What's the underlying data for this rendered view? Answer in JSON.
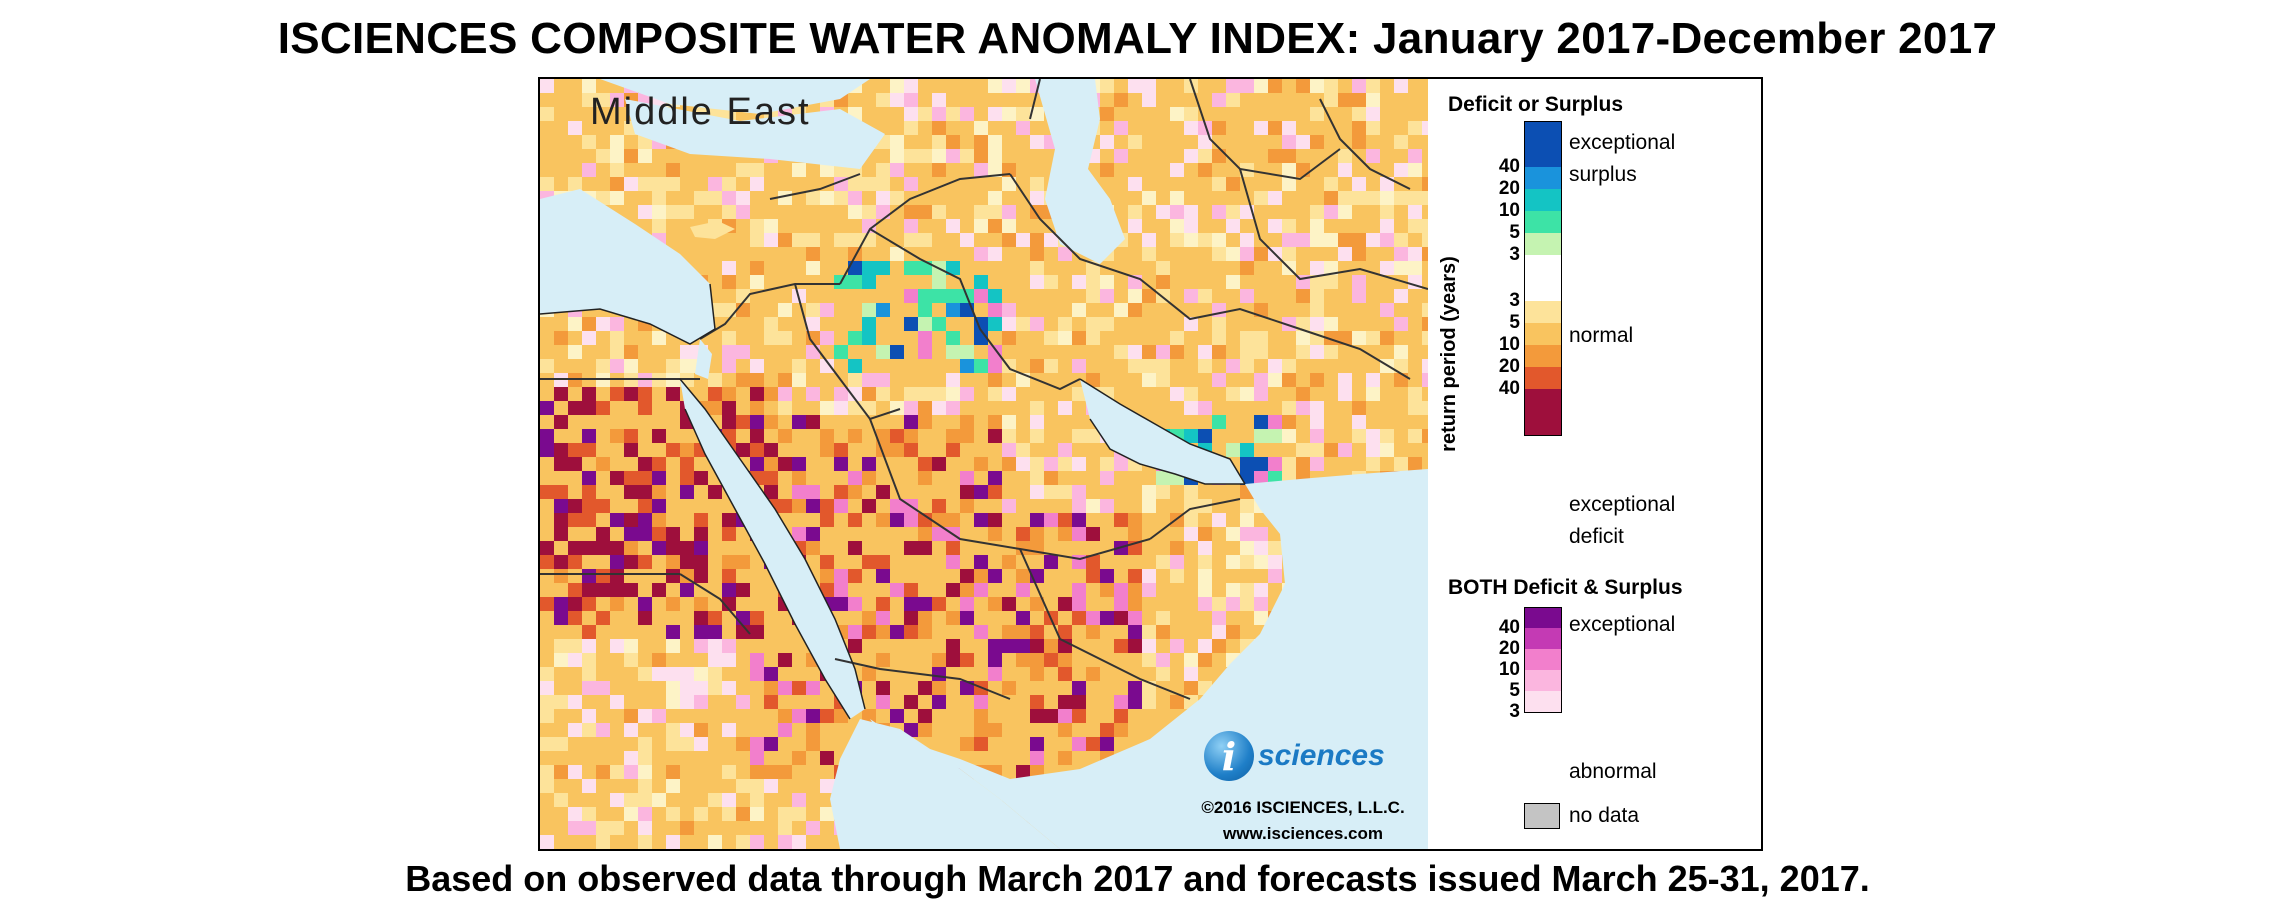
{
  "title": "ISCIENCES COMPOSITE WATER ANOMALY INDEX: January 2017-December 2017",
  "subtitle": "Based on observed data through March 2017 and forecasts issued March 25-31, 2017.",
  "map": {
    "region_label": "Middle East",
    "logo_letter": "i",
    "logo_text": "sciences",
    "copyright": "©2016 ISCIENCES, L.L.C.",
    "website": "www.isciences.com",
    "colors": {
      "water": "#d7eef7",
      "normal": "#fdf3c6",
      "deficit_3": "#fde39a",
      "deficit_5": "#f9c45f",
      "deficit_10": "#f39a3b",
      "deficit_20": "#e2582c",
      "deficit_40": "#9e0f3c",
      "surplus_3": "#c5f3b1",
      "surplus_5": "#3de3a6",
      "surplus_10": "#14c4c4",
      "surplus_20": "#1a93dc",
      "surplus_40": "#0c4fb3",
      "both_3": "#fde0ef",
      "both_5": "#fbb6df",
      "both_10": "#f27fcc",
      "both_20": "#c43ab4",
      "both_40": "#7a0a8f",
      "no_data": "#c4c4c4",
      "borders": "#333333"
    }
  },
  "legend": {
    "deficit_surplus": {
      "heading": "Deficit or Surplus",
      "axis_title": "return period (years)",
      "bands": [
        {
          "key": "surplus_exceptional",
          "color": "#0c4fb3"
        },
        {
          "key": "surplus_40",
          "color": "#1a93dc",
          "tick": "40"
        },
        {
          "key": "surplus_20",
          "color": "#14c4c4",
          "tick": "20"
        },
        {
          "key": "surplus_10",
          "color": "#3de3a6",
          "tick": "10"
        },
        {
          "key": "surplus_5",
          "color": "#c5f3b1",
          "tick": "5"
        },
        {
          "key": "normal",
          "color": "#ffffff",
          "tick": "3"
        },
        {
          "key": "deficit_3",
          "color": "#fde39a",
          "tick": "3"
        },
        {
          "key": "deficit_5",
          "color": "#f9c45f",
          "tick": "5"
        },
        {
          "key": "deficit_10",
          "color": "#f39a3b",
          "tick": "10"
        },
        {
          "key": "deficit_20",
          "color": "#e2582c",
          "tick": "20"
        },
        {
          "key": "deficit_40",
          "color": "#9e0f3c",
          "tick": "40"
        }
      ],
      "label_exceptional_surplus_line1": "exceptional",
      "label_exceptional_surplus_line2": "surplus",
      "label_normal": "normal",
      "label_exceptional_deficit_line1": "exceptional",
      "label_exceptional_deficit_line2": "deficit"
    },
    "both": {
      "heading": "BOTH Deficit & Surplus",
      "bands": [
        {
          "key": "both_40",
          "color": "#7a0a8f",
          "tick": "40"
        },
        {
          "key": "both_20",
          "color": "#c43ab4",
          "tick": "20"
        },
        {
          "key": "both_10",
          "color": "#f27fcc",
          "tick": "10"
        },
        {
          "key": "both_5",
          "color": "#fbb6df",
          "tick": "5"
        },
        {
          "key": "both_3",
          "color": "#fde0ef",
          "tick": "3"
        }
      ],
      "label_top": "exceptional",
      "label_bottom": "abnormal"
    },
    "no_data_label": "no data"
  }
}
